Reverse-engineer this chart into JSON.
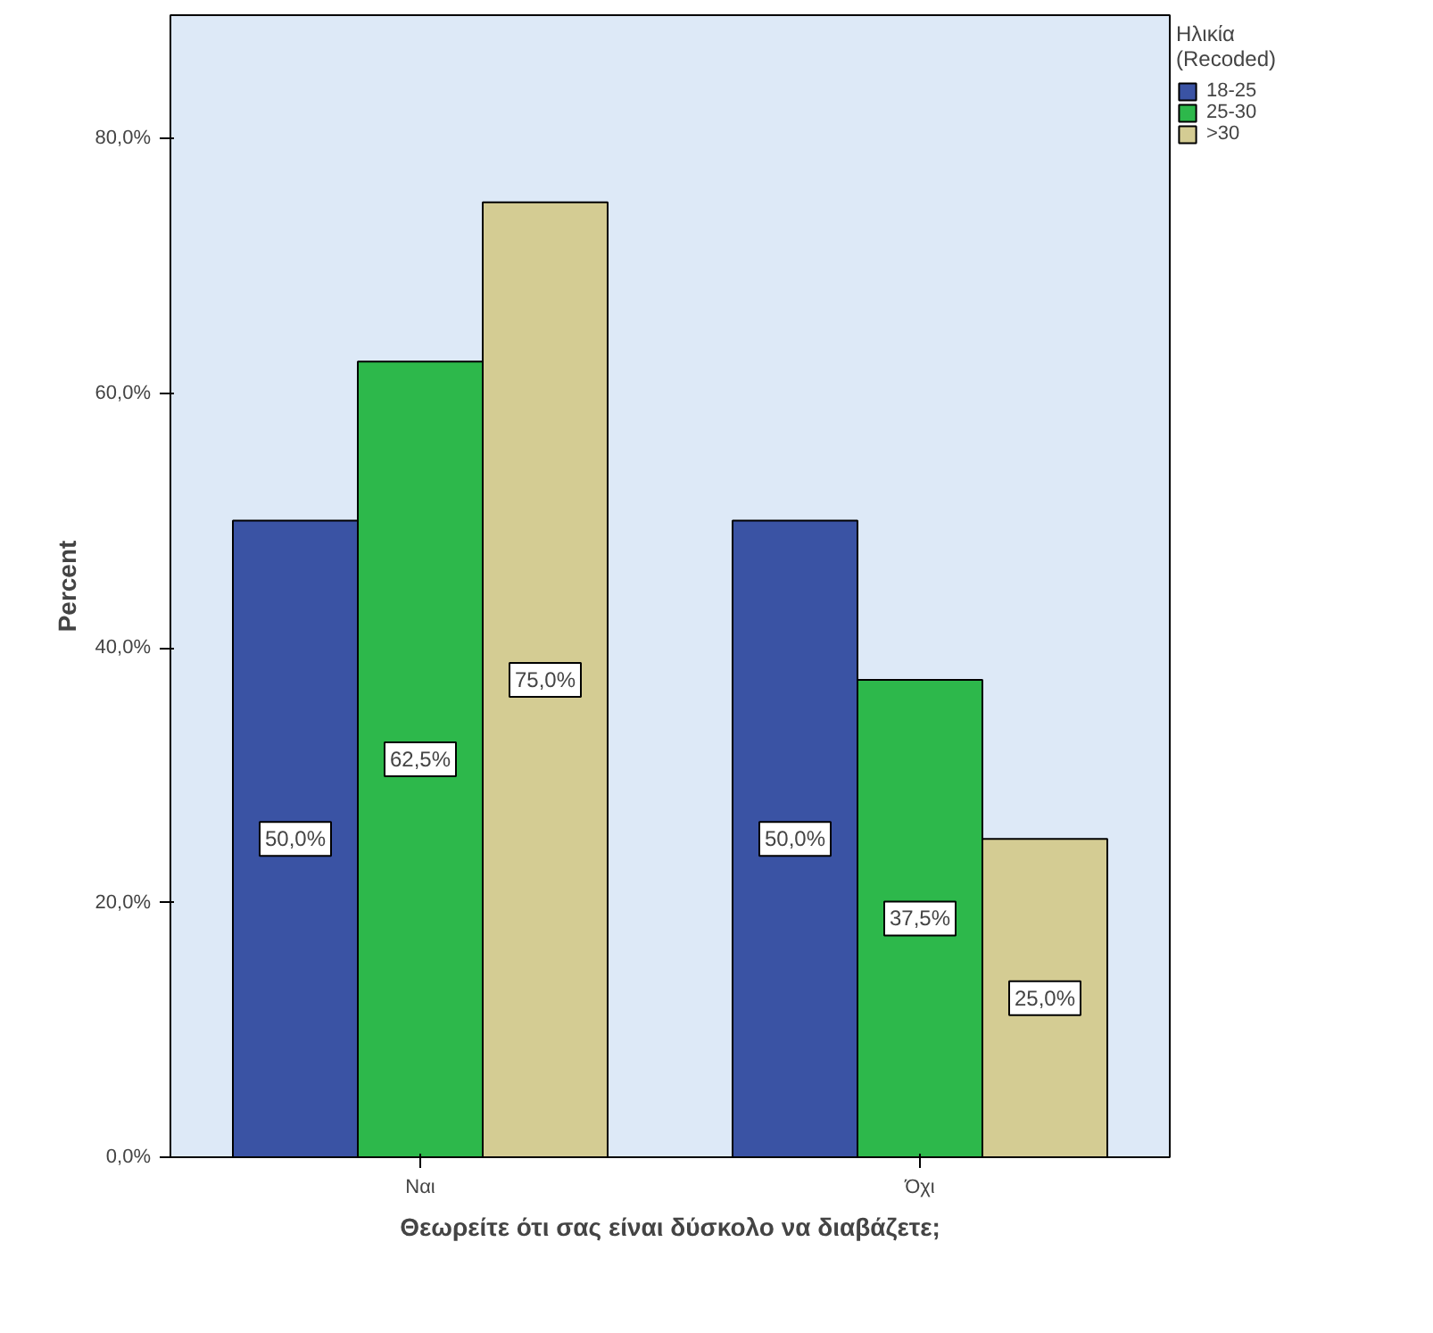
{
  "chart_data": {
    "type": "bar",
    "xlabel": "Θεωρείτε ότι σας είναι δύσκολο να διαβάζετε;",
    "ylabel": "Percent",
    "legend_title": "Ηλικία (Recoded)",
    "categories": [
      "Ναι",
      "Όχι"
    ],
    "series": [
      {
        "name": "18-25",
        "color": "#3a53a4",
        "values": [
          50.0,
          50.0
        ],
        "value_labels": [
          "50,0%",
          "50,0%"
        ]
      },
      {
        "name": "25-30",
        "color": "#2db84b",
        "values": [
          62.5,
          37.5
        ],
        "value_labels": [
          "62,5%",
          "37,5%"
        ]
      },
      {
        "name": ">30",
        "color": "#d4cc93",
        "values": [
          75.0,
          25.0
        ],
        "value_labels": [
          "75,0%",
          "25,0%"
        ]
      }
    ],
    "ylim": [
      0,
      89.7
    ],
    "yticks": [
      {
        "value": 0,
        "label": "0,0%"
      },
      {
        "value": 20,
        "label": "20,0%"
      },
      {
        "value": 40,
        "label": "40,0%"
      },
      {
        "value": 60,
        "label": "60,0%"
      },
      {
        "value": 80,
        "label": "80,0%"
      }
    ],
    "grid": false,
    "legend": "top right"
  }
}
